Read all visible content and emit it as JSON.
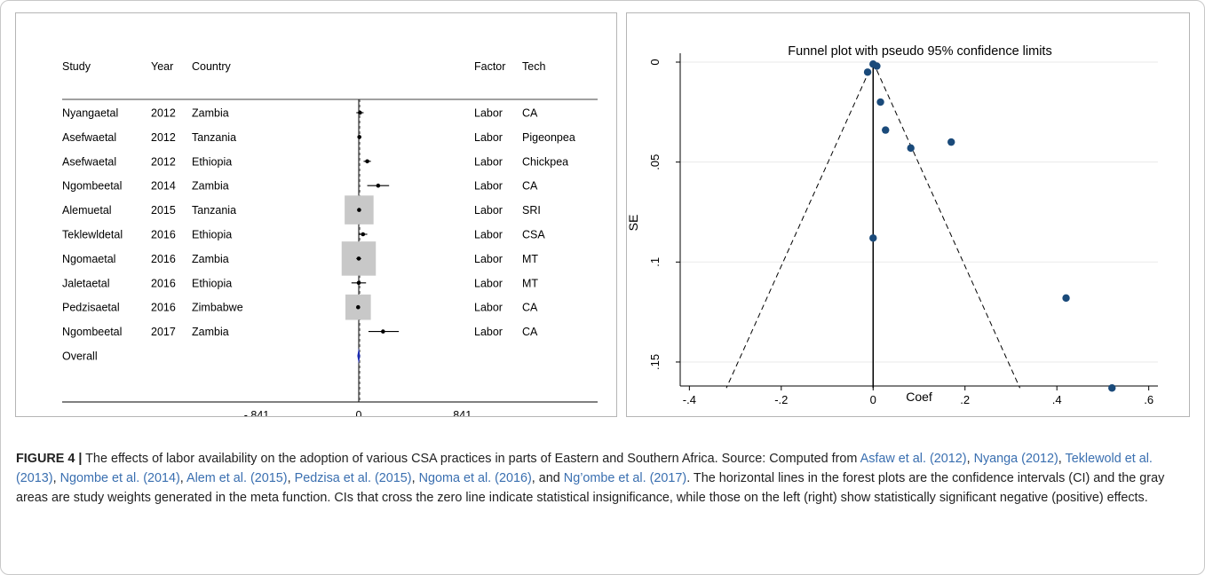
{
  "forest": {
    "headers": {
      "study": "Study",
      "year": "Year",
      "country": "Country",
      "factor": "Factor",
      "tech": "Tech"
    },
    "rows": [
      {
        "study": "Nyangaetal",
        "year": "2012",
        "country": "Zambia",
        "factor": "Labor",
        "tech": "CA",
        "est": 0.01,
        "lo": -0.02,
        "hi": 0.04,
        "weight": 0
      },
      {
        "study": "Asefwaetal",
        "year": "2012",
        "country": "Tanzania",
        "factor": "Labor",
        "tech": "Pigeonpea",
        "est": 0.005,
        "lo": -0.01,
        "hi": 0.02,
        "weight": 0
      },
      {
        "study": "Asefwaetal",
        "year": "2012",
        "country": "Ethiopia",
        "factor": "Labor",
        "tech": "Chickpea",
        "est": 0.07,
        "lo": 0.04,
        "hi": 0.1,
        "weight": 0
      },
      {
        "study": "Ngombeetal",
        "year": "2014",
        "country": "Zambia",
        "factor": "Labor",
        "tech": "CA",
        "est": 0.16,
        "lo": 0.07,
        "hi": 0.25,
        "weight": 0
      },
      {
        "study": "Alemuetal",
        "year": "2015",
        "country": "Tanzania",
        "factor": "Labor",
        "tech": "SRI",
        "est": 0.003,
        "lo": -0.01,
        "hi": 0.015,
        "weight": 0.35
      },
      {
        "study": "Teklewldetal",
        "year": "2016",
        "country": "Ethiopia",
        "factor": "Labor",
        "tech": "CSA",
        "est": 0.035,
        "lo": 0.0,
        "hi": 0.07,
        "weight": 0
      },
      {
        "study": "Ngomaetal",
        "year": "2016",
        "country": "Zambia",
        "factor": "Labor",
        "tech": "MT",
        "est": 0.0,
        "lo": -0.02,
        "hi": 0.02,
        "weight": 0.55
      },
      {
        "study": "Jaletaetal",
        "year": "2016",
        "country": "Ethiopia",
        "factor": "Labor",
        "tech": "MT",
        "est": 0.0,
        "lo": -0.06,
        "hi": 0.06,
        "weight": 0
      },
      {
        "study": "Pedzisaetal",
        "year": "2016",
        "country": "Zimbabwe",
        "factor": "Labor",
        "tech": "CA",
        "est": -0.005,
        "lo": -0.015,
        "hi": 0.01,
        "weight": 0.22
      },
      {
        "study": "Ngombeetal",
        "year": "2017",
        "country": "Zambia",
        "factor": "Labor",
        "tech": "CA",
        "est": 0.2,
        "lo": 0.08,
        "hi": 0.33,
        "weight": 0
      }
    ],
    "overall": {
      "label": "Overall",
      "est": 0.0
    },
    "xticks": [
      {
        "v": -0.841,
        "label": "-.841"
      },
      {
        "v": 0,
        "label": "0"
      },
      {
        "v": 0.841,
        "label": ".841"
      }
    ]
  },
  "chart_data": {
    "type": "scatter",
    "title": "Funnel plot with pseudo 95% confidence limits",
    "xlabel": "Coef",
    "ylabel": "SE",
    "xlim": [
      -0.42,
      0.62
    ],
    "ylim": [
      0,
      0.162
    ],
    "y_reversed": true,
    "xticks": [
      {
        "v": -0.4,
        "label": "-.4"
      },
      {
        "v": -0.2,
        "label": "-.2"
      },
      {
        "v": 0,
        "label": "0"
      },
      {
        "v": 0.2,
        "label": ".2"
      },
      {
        "v": 0.4,
        "label": ".4"
      },
      {
        "v": 0.6,
        "label": ".6"
      }
    ],
    "yticks": [
      {
        "v": 0,
        "label": "0"
      },
      {
        "v": 0.05,
        "label": ".05"
      },
      {
        "v": 0.1,
        "label": ".1"
      },
      {
        "v": 0.15,
        "label": ".15"
      }
    ],
    "grid": "horizontal",
    "points": [
      {
        "x": -0.012,
        "y": 0.005
      },
      {
        "x": 0.0,
        "y": 0.001
      },
      {
        "x": 0.008,
        "y": 0.002
      },
      {
        "x": 0.016,
        "y": 0.02
      },
      {
        "x": 0.027,
        "y": 0.034
      },
      {
        "x": 0.082,
        "y": 0.043
      },
      {
        "x": 0.17,
        "y": 0.04
      },
      {
        "x": 0.0,
        "y": 0.088
      },
      {
        "x": 0.42,
        "y": 0.118
      },
      {
        "x": 0.52,
        "y": 0.163
      }
    ],
    "ci_lines": {
      "center": 0,
      "se_max": 0.163,
      "z": 1.96
    },
    "colors": {
      "points": "#1a4a7a",
      "gridlines": "#eaeaea",
      "lines": "#000000"
    }
  },
  "caption": {
    "label": "FIGURE 4 |",
    "text1": " The effects of labor availability on the adoption of various CSA practices in parts of Eastern and Southern Africa. Source: Computed from ",
    "ref1": "Asfaw et al. (2012)",
    "sep1": ", ",
    "ref2": "Nyanga (2012)",
    "sep2": ", ",
    "ref3": "Teklewold et al. (2013)",
    "sep3": ", ",
    "ref4": "Ngombe et al. (2014)",
    "sep4": ", ",
    "ref5": "Alem et al. (2015)",
    "sep5": ", ",
    "ref6": "Pedzisa et al. (2015)",
    "sep6": ", ",
    "ref7": "Ngoma et al. (2016)",
    "sep7": ", and ",
    "ref8": "Ng’ombe et al. (2017)",
    "text2": ". The horizontal lines in the forest plots are the confidence intervals (CI) and the gray areas are study weights generated in the meta function. CIs that cross the zero line indicate statistical insignificance, while those on the left (right) show statistically significant negative (positive) effects."
  }
}
